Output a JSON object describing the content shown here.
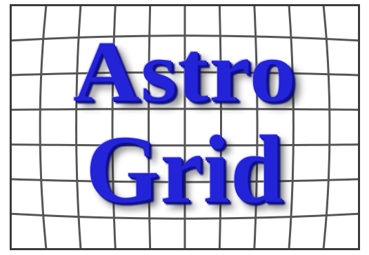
{
  "logo": {
    "line1": "Astro",
    "line2": "Grid",
    "text_color": "#2323d8",
    "grid_color": "#555555",
    "frame_color": "#3a3a3a",
    "background": "#ffffff"
  }
}
